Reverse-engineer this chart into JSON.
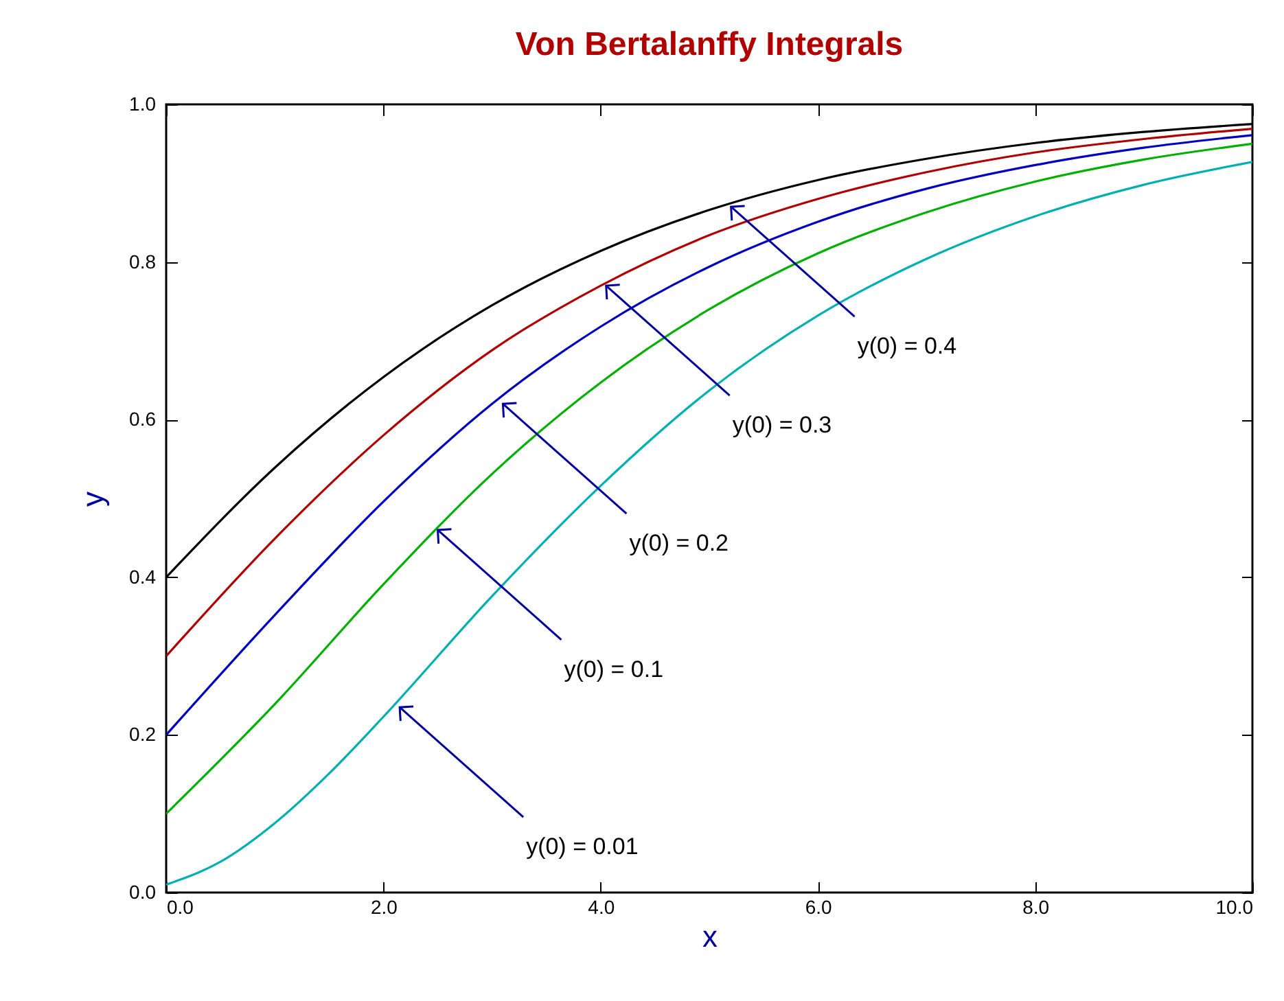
{
  "chart_data": {
    "type": "line",
    "title": "Von Bertalanffy Integrals",
    "xlabel": "x",
    "ylabel": "y",
    "x": [
      0,
      1,
      2,
      3,
      4,
      5,
      6,
      7,
      8,
      9,
      10
    ],
    "series": [
      {
        "color": "#000000",
        "values": [
          0.4,
          0.539,
          0.654,
          0.745,
          0.814,
          0.866,
          0.904,
          0.931,
          0.951,
          0.965,
          0.975
        ]
      },
      {
        "color": "#b00000",
        "values": [
          0.3,
          0.449,
          0.58,
          0.688,
          0.77,
          0.834,
          0.88,
          0.914,
          0.939,
          0.956,
          0.969
        ]
      },
      {
        "color": "#0000c0",
        "values": [
          0.2,
          0.352,
          0.496,
          0.62,
          0.718,
          0.794,
          0.851,
          0.893,
          0.923,
          0.945,
          0.961
        ]
      },
      {
        "color": "#00b000",
        "values": [
          0.1,
          0.239,
          0.391,
          0.531,
          0.647,
          0.74,
          0.811,
          0.863,
          0.902,
          0.93,
          0.95
        ]
      },
      {
        "color": "#00b0b0",
        "x": [
          0,
          0.5,
          1,
          1.5,
          2,
          3,
          4,
          5,
          6,
          7,
          8,
          9,
          10
        ],
        "values": [
          0.01,
          0.039,
          0.088,
          0.151,
          0.223,
          0.376,
          0.516,
          0.637,
          0.732,
          0.804,
          0.858,
          0.898,
          0.927
        ]
      }
    ],
    "annotations": [
      {
        "text": "y(0) = 0.4",
        "x": 5.2,
        "y": 0.87
      },
      {
        "text": "y(0) = 0.3",
        "x": 4.05,
        "y": 0.77
      },
      {
        "text": "y(0) = 0.2",
        "x": 3.1,
        "y": 0.62
      },
      {
        "text": "y(0) = 0.1",
        "x": 2.5,
        "y": 0.46
      },
      {
        "text": "y(0) = 0.01",
        "x": 2.15,
        "y": 0.235
      }
    ],
    "xlim": [
      0,
      10
    ],
    "ylim": [
      0,
      1
    ],
    "xticks": [
      {
        "value": 0,
        "label": "0.0"
      },
      {
        "value": 2,
        "label": "2.0"
      },
      {
        "value": 4,
        "label": "4.0"
      },
      {
        "value": 6,
        "label": "6.0"
      },
      {
        "value": 8,
        "label": "8.0"
      },
      {
        "value": 10,
        "label": "10.0"
      }
    ],
    "yticks": [
      {
        "value": 0,
        "label": "0.0"
      },
      {
        "value": 0.2,
        "label": "0.2"
      },
      {
        "value": 0.4,
        "label": "0.4"
      },
      {
        "value": 0.6,
        "label": "0.6"
      },
      {
        "value": 0.8,
        "label": "0.8"
      },
      {
        "value": 1,
        "label": "1.0"
      }
    ],
    "grid": false,
    "legend": false
  }
}
